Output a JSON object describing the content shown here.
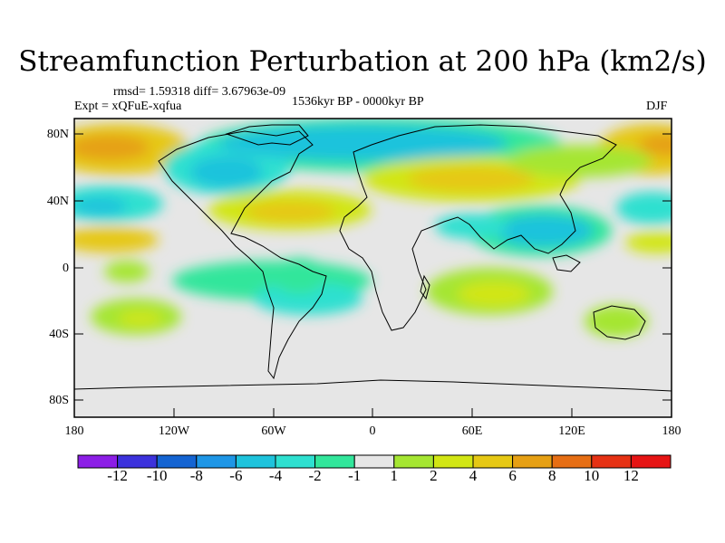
{
  "title": "Streamfunction Perturbation at 200 hPa (km2/s)",
  "stats_text": "rmsd= 1.59318 diff= 3.67963e-09",
  "experiment_text": "Expt = xQFuE-xqfua",
  "period_text": "1536kyr BP - 0000kyr BP",
  "season_text": "DJF",
  "colors": {
    "land_outline": "#000000",
    "neutral": "#e6e6e6"
  },
  "chart_data": {
    "type": "heatmap",
    "projection": "cylindrical-equidistant",
    "variable": "Streamfunction Perturbation at 200 hPa (km2/s)",
    "lat_ticks": [
      "80N",
      "40N",
      "0",
      "40S",
      "80S"
    ],
    "lon_ticks": [
      "180",
      "120W",
      "60W",
      "0",
      "60E",
      "120E",
      "180"
    ],
    "lon_range": [
      -180,
      180
    ],
    "lat_range": [
      -90,
      90
    ],
    "colorbar": {
      "levels": [
        "-12",
        "-10",
        "-8",
        "-6",
        "-4",
        "-2",
        "-1",
        "1",
        "2",
        "4",
        "6",
        "8",
        "10",
        "12"
      ],
      "colors": [
        "#8c1ee6",
        "#3c32dc",
        "#1464d2",
        "#1e96e6",
        "#1ec3dc",
        "#2ee0d0",
        "#32e69b",
        "#e6e6e6",
        "#a5e632",
        "#d2e614",
        "#e6c814",
        "#e6a014",
        "#e66e14",
        "#e63214",
        "#e61414"
      ]
    },
    "features": [
      {
        "name": "arctic-negative-anomaly",
        "lon": -30,
        "lat": 68,
        "value": -4
      },
      {
        "name": "north-pacific-positive-anomaly",
        "lon": -155,
        "lat": 70,
        "value": 6
      },
      {
        "name": "north-atlantic-positive-band",
        "lon": -60,
        "lat": 40,
        "value": 4
      },
      {
        "name": "eurasia-positive-band",
        "lon": 40,
        "lat": 52,
        "value": 4
      },
      {
        "name": "east-asia-negative-anomaly",
        "lon": 115,
        "lat": 25,
        "value": -4
      },
      {
        "name": "south-america-negative-anomaly",
        "lon": -40,
        "lat": -18,
        "value": -4
      },
      {
        "name": "south-indian-positive-anomaly",
        "lon": 70,
        "lat": -15,
        "value": 2
      }
    ]
  }
}
